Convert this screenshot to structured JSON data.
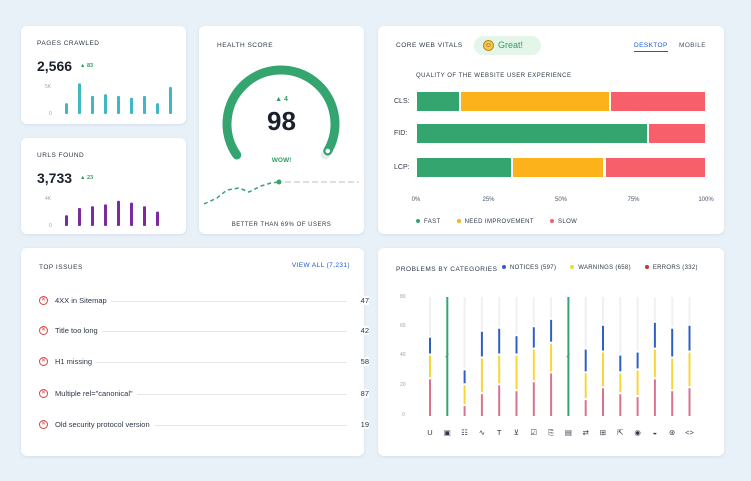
{
  "pages_crawled": {
    "title": "PAGES CRAWLED",
    "value": "2,566",
    "delta": "▲ 83",
    "y_labels": [
      "5K",
      "0"
    ],
    "bar_values": [
      0.3,
      0.85,
      0.5,
      0.55,
      0.5,
      0.45,
      0.5,
      0.3,
      0.75
    ]
  },
  "urls_found": {
    "title": "URLS FOUND",
    "value": "3,733",
    "delta": "▲ 23",
    "y_labels": [
      "4K",
      "0"
    ],
    "bar_values": [
      0.3,
      0.5,
      0.55,
      0.6,
      0.7,
      0.65,
      0.55,
      0.4
    ]
  },
  "health": {
    "title": "HEALTH SCORE",
    "score": "98",
    "delta": "▲ 4",
    "badge": "WOW!",
    "footer": "BETTER THAN 69% OF USERS",
    "score_fraction": 0.98
  },
  "cwv": {
    "title": "CORE WEB VITALS",
    "status": "Great!",
    "tabs": [
      "DESKTOP",
      "MOBILE"
    ],
    "subtitle": "QUALITY OF THE WEBSITE USER EXPERIENCE",
    "rows": [
      {
        "label": "CLS:",
        "fast": 15,
        "need": 52,
        "slow": 33
      },
      {
        "label": "FID:",
        "fast": 80,
        "need": 0,
        "slow": 20
      },
      {
        "label": "LCP:",
        "fast": 33,
        "need": 32,
        "slow": 35
      }
    ],
    "ticks": [
      "0%",
      "25%",
      "50%",
      "75%",
      "100%"
    ],
    "legend": [
      "FAST",
      "NEED IMPROVEMENT",
      "SLOW"
    ],
    "colors": {
      "fast": "#34a56f",
      "need": "#fbb21b",
      "slow": "#f75f6b"
    }
  },
  "issues": {
    "title": "TOP ISSUES",
    "view_all": "VIEW ALL (7,231)",
    "rows": [
      {
        "label": "4XX in Sitemap",
        "count": "47"
      },
      {
        "label": "Title too long",
        "count": "42"
      },
      {
        "label": "H1 missing",
        "count": "58"
      },
      {
        "label": "Multiple rel=\"canonical\"",
        "count": "87"
      },
      {
        "label": "Old security protocol version",
        "count": "19"
      }
    ]
  },
  "problems": {
    "title": "PROBLEMS BY CATEGORIES",
    "legend": [
      "NOTICES (597)",
      "WARNINGS (658)",
      "ERRORS (332)"
    ],
    "colors": {
      "notice": "#2f5fc4",
      "warning": "#f6d73a",
      "error": "#d9738d",
      "full": "#34a56f"
    },
    "y_ticks": [
      "80",
      "60",
      "40",
      "20",
      "0"
    ],
    "y_max": 80,
    "columns": [
      {
        "icon": "U",
        "error": 26,
        "warning": 16,
        "notice": 12
      },
      {
        "icon": "▣",
        "full": 80
      },
      {
        "icon": "☷",
        "error": 8,
        "warning": 14,
        "notice": 10
      },
      {
        "icon": "∿",
        "error": 16,
        "warning": 24,
        "notice": 18
      },
      {
        "icon": "T",
        "error": 22,
        "warning": 20,
        "notice": 18
      },
      {
        "icon": "⊻",
        "error": 18,
        "warning": 24,
        "notice": 13
      },
      {
        "icon": "☑",
        "error": 24,
        "warning": 22,
        "notice": 15
      },
      {
        "icon": "⎘",
        "error": 30,
        "warning": 20,
        "notice": 16
      },
      {
        "icon": "▤",
        "full": 80
      },
      {
        "icon": "⇄",
        "error": 12,
        "warning": 18,
        "notice": 16
      },
      {
        "icon": "⊞",
        "error": 20,
        "warning": 24,
        "notice": 18
      },
      {
        "icon": "⇱",
        "error": 16,
        "warning": 14,
        "notice": 12
      },
      {
        "icon": "◉",
        "error": 14,
        "warning": 18,
        "notice": 12
      },
      {
        "icon": "◒",
        "error": 26,
        "warning": 20,
        "notice": 18
      },
      {
        "icon": "⊛",
        "error": 18,
        "warning": 22,
        "notice": 20
      },
      {
        "icon": "<>",
        "error": 20,
        "warning": 24,
        "notice": 18
      }
    ]
  }
}
